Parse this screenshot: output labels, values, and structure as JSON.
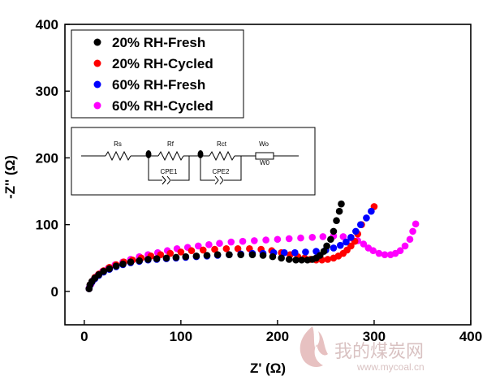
{
  "chart_data": {
    "type": "scatter",
    "title": "",
    "xlabel": "Z' (Ω)",
    "ylabel": "-Z'' (Ω)",
    "xlim": [
      -20,
      400
    ],
    "ylim": [
      -50,
      400
    ],
    "x_ticks": [
      0,
      100,
      200,
      300,
      400
    ],
    "y_ticks": [
      0,
      100,
      200,
      300,
      400
    ],
    "grid": false,
    "legend_position": "top-left",
    "series": [
      {
        "name": "20% RH-Fresh",
        "color": "#000000",
        "points": [
          [
            5,
            4
          ],
          [
            6,
            10
          ],
          [
            8,
            15
          ],
          [
            11,
            20
          ],
          [
            15,
            25
          ],
          [
            20,
            30
          ],
          [
            26,
            34
          ],
          [
            33,
            38
          ],
          [
            40,
            41
          ],
          [
            48,
            44
          ],
          [
            57,
            46
          ],
          [
            66,
            48
          ],
          [
            75,
            49
          ],
          [
            85,
            50
          ],
          [
            95,
            51
          ],
          [
            105,
            52
          ],
          [
            116,
            53
          ],
          [
            127,
            54
          ],
          [
            138,
            55
          ],
          [
            150,
            55
          ],
          [
            162,
            55
          ],
          [
            174,
            55
          ],
          [
            185,
            54
          ],
          [
            195,
            52
          ],
          [
            204,
            50
          ],
          [
            212,
            48
          ],
          [
            219,
            47
          ],
          [
            225,
            47
          ],
          [
            231,
            47
          ],
          [
            236,
            48
          ],
          [
            240,
            50
          ],
          [
            244,
            54
          ],
          [
            248,
            60
          ],
          [
            251,
            68
          ],
          [
            255,
            78
          ],
          [
            258,
            90
          ],
          [
            261,
            106
          ],
          [
            264,
            120
          ],
          [
            266,
            131
          ]
        ]
      },
      {
        "name": "20% RH-Cycled",
        "color": "#ff0000",
        "points": [
          [
            5,
            4
          ],
          [
            6,
            10
          ],
          [
            8,
            15
          ],
          [
            11,
            21
          ],
          [
            15,
            26
          ],
          [
            20,
            31
          ],
          [
            26,
            36
          ],
          [
            33,
            40
          ],
          [
            41,
            44
          ],
          [
            50,
            47
          ],
          [
            59,
            50
          ],
          [
            69,
            53
          ],
          [
            79,
            55
          ],
          [
            89,
            57
          ],
          [
            100,
            59
          ],
          [
            111,
            61
          ],
          [
            123,
            62
          ],
          [
            135,
            63
          ],
          [
            147,
            64
          ],
          [
            159,
            64
          ],
          [
            171,
            64
          ],
          [
            183,
            63
          ],
          [
            194,
            61
          ],
          [
            204,
            58
          ],
          [
            213,
            55
          ],
          [
            221,
            52
          ],
          [
            228,
            50
          ],
          [
            234,
            48
          ],
          [
            240,
            47
          ],
          [
            246,
            47
          ],
          [
            252,
            48
          ],
          [
            258,
            50
          ],
          [
            263,
            53
          ],
          [
            268,
            57
          ],
          [
            272,
            62
          ],
          [
            276,
            68
          ],
          [
            280,
            75
          ],
          [
            283,
            86
          ],
          [
            287,
            100
          ],
          [
            300,
            127
          ]
        ]
      },
      {
        "name": "60% RH-Fresh",
        "color": "#0000ff",
        "points": [
          [
            5,
            4
          ],
          [
            6,
            9
          ],
          [
            8,
            14
          ],
          [
            11,
            19
          ],
          [
            15,
            24
          ],
          [
            20,
            29
          ],
          [
            26,
            33
          ],
          [
            33,
            37
          ],
          [
            40,
            40
          ],
          [
            48,
            43
          ],
          [
            57,
            45
          ],
          [
            66,
            47
          ],
          [
            75,
            48
          ],
          [
            85,
            49
          ],
          [
            95,
            50
          ],
          [
            105,
            51
          ],
          [
            116,
            52
          ],
          [
            127,
            53
          ],
          [
            138,
            54
          ],
          [
            150,
            55
          ],
          [
            162,
            56
          ],
          [
            174,
            57
          ],
          [
            185,
            57
          ],
          [
            196,
            58
          ],
          [
            207,
            58
          ],
          [
            218,
            58
          ],
          [
            229,
            59
          ],
          [
            240,
            60
          ],
          [
            250,
            62
          ],
          [
            258,
            65
          ],
          [
            265,
            69
          ],
          [
            271,
            74
          ],
          [
            276,
            81
          ],
          [
            281,
            90
          ],
          [
            286,
            100
          ],
          [
            292,
            110
          ],
          [
            297,
            120
          ]
        ]
      },
      {
        "name": "60% RH-Cycled",
        "color": "#ff00ff",
        "points": [
          [
            5,
            5
          ],
          [
            7,
            11
          ],
          [
            10,
            18
          ],
          [
            14,
            24
          ],
          [
            19,
            30
          ],
          [
            25,
            35
          ],
          [
            32,
            40
          ],
          [
            40,
            44
          ],
          [
            48,
            48
          ],
          [
            57,
            52
          ],
          [
            66,
            55
          ],
          [
            76,
            58
          ],
          [
            86,
            61
          ],
          [
            96,
            64
          ],
          [
            107,
            66
          ],
          [
            118,
            68
          ],
          [
            129,
            70
          ],
          [
            140,
            72
          ],
          [
            152,
            74
          ],
          [
            164,
            75
          ],
          [
            176,
            76
          ],
          [
            188,
            77
          ],
          [
            200,
            78
          ],
          [
            212,
            79
          ],
          [
            224,
            80
          ],
          [
            236,
            81
          ],
          [
            247,
            82
          ],
          [
            258,
            83
          ],
          [
            268,
            82
          ],
          [
            276,
            80
          ],
          [
            283,
            76
          ],
          [
            289,
            71
          ],
          [
            294,
            65
          ],
          [
            299,
            61
          ],
          [
            305,
            57
          ],
          [
            311,
            55
          ],
          [
            317,
            55
          ],
          [
            322,
            57
          ],
          [
            327,
            61
          ],
          [
            332,
            68
          ],
          [
            337,
            78
          ],
          [
            340,
            90
          ],
          [
            343,
            101
          ]
        ]
      }
    ],
    "inset_circuit": {
      "labels": [
        "Rs",
        "Rf",
        "CPE1",
        "Rct",
        "CPE2",
        "Wo",
        "W0"
      ]
    }
  },
  "watermark": {
    "text": "我的煤炭网",
    "url": "www.mycoal.cn"
  }
}
